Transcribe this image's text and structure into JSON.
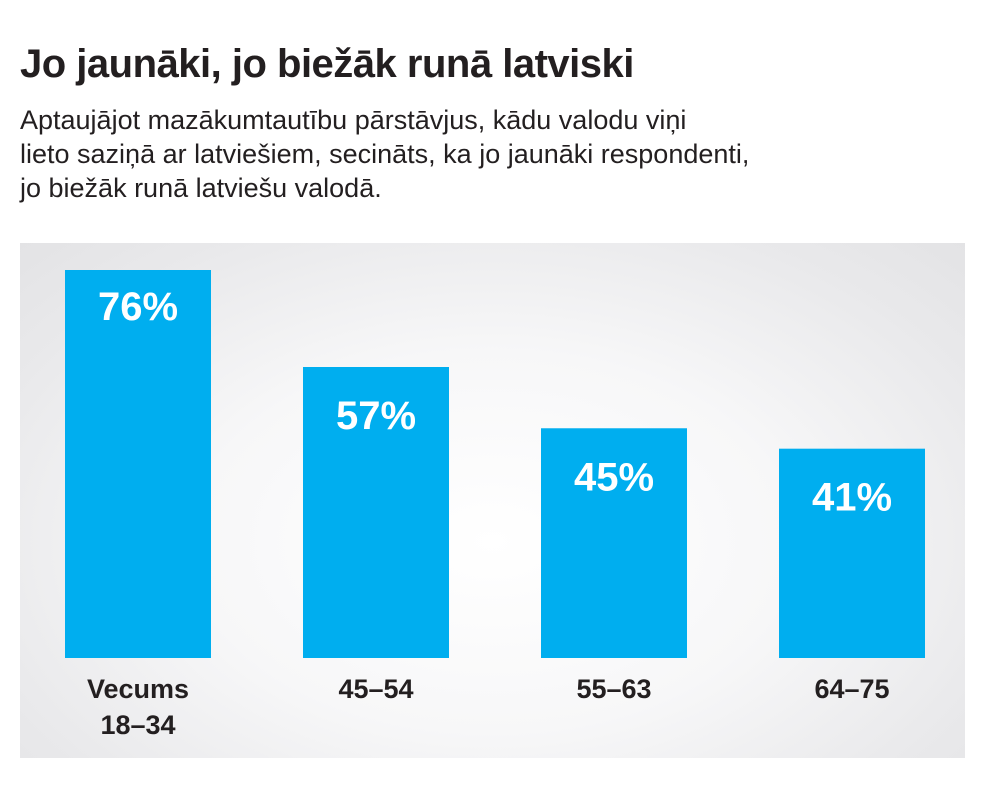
{
  "header": {
    "title": "Jo jaunāki, jo biežāk runā latviski",
    "subtitle_lines": [
      "Aptaujājot mazākumtautību pārstāvjus, kādu valodu viņi",
      "lieto saziņā ar latviešiem, secināts, ka  jo jaunāki respondenti,",
      "jo biežāk runā latviešu valodā."
    ]
  },
  "colors": {
    "bar": "#00aeef",
    "text": "#231f20"
  },
  "chart_data": {
    "type": "bar",
    "title": "Jo jaunāki, jo biežāk runā latviski",
    "categories": [
      [
        "Vecums",
        "18–34"
      ],
      [
        "45–54"
      ],
      [
        "55–63"
      ],
      [
        "64–75"
      ]
    ],
    "values": [
      76,
      57,
      45,
      41
    ],
    "value_labels": [
      "76%",
      "57%",
      "45%",
      "41%"
    ],
    "unit": "%",
    "ylim": [
      0,
      76
    ],
    "grid": false,
    "legend": "none"
  }
}
